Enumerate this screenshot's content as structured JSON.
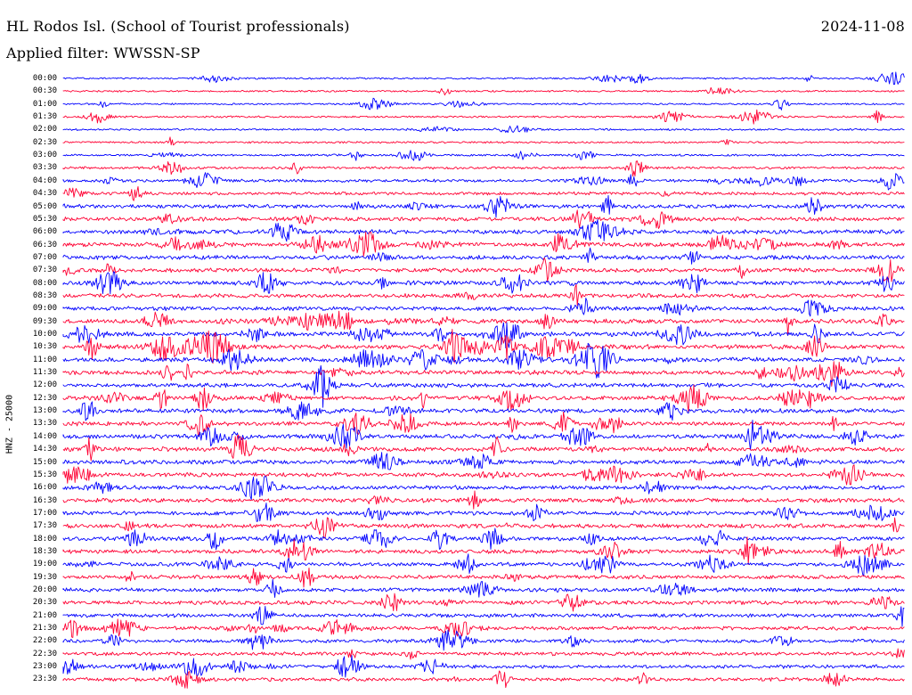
{
  "header": {
    "station": "HL Rodos Isl. (School of Tourist professionals)",
    "date": "2024-11-08",
    "filter": "Applied filter: WWSSN-SP"
  },
  "axis": {
    "ylabel": "HNZ - 25000"
  },
  "colors": {
    "even_trace": "#0000ff",
    "odd_trace": "#ff0033",
    "text": "#000000",
    "background": "#ffffff"
  },
  "chart_data": {
    "type": "line",
    "ylabel": "HNZ - 25000",
    "row_interval_minutes": 30,
    "rows": [
      "00:00",
      "00:30",
      "01:00",
      "01:30",
      "02:00",
      "02:30",
      "03:00",
      "03:30",
      "04:00",
      "04:30",
      "05:00",
      "05:30",
      "06:00",
      "06:30",
      "07:00",
      "07:30",
      "08:00",
      "08:30",
      "09:00",
      "09:30",
      "10:00",
      "10:30",
      "11:00",
      "11:30",
      "12:00",
      "12:30",
      "13:00",
      "13:30",
      "14:00",
      "14:30",
      "15:00",
      "15:30",
      "16:00",
      "16:30",
      "17:00",
      "17:30",
      "18:00",
      "18:30",
      "19:00",
      "19:30",
      "20:00",
      "20:30",
      "21:00",
      "21:30",
      "22:00",
      "22:30",
      "23:00",
      "23:30"
    ],
    "activity_level": [
      0.25,
      0.25,
      0.25,
      0.3,
      0.3,
      0.3,
      0.35,
      0.45,
      0.55,
      0.6,
      0.8,
      0.85,
      0.9,
      0.9,
      0.9,
      0.85,
      0.85,
      0.85,
      0.85,
      0.9,
      0.95,
      0.95,
      0.95,
      0.9,
      0.9,
      0.9,
      0.9,
      0.85,
      0.9,
      0.9,
      0.9,
      0.85,
      0.85,
      0.85,
      0.85,
      0.85,
      0.85,
      0.8,
      0.8,
      0.8,
      0.8,
      0.8,
      0.75,
      0.75,
      0.7,
      0.7,
      0.7,
      0.7
    ],
    "series": [
      {
        "color": "#0000ff"
      },
      {
        "color": "#ff0033"
      }
    ]
  }
}
